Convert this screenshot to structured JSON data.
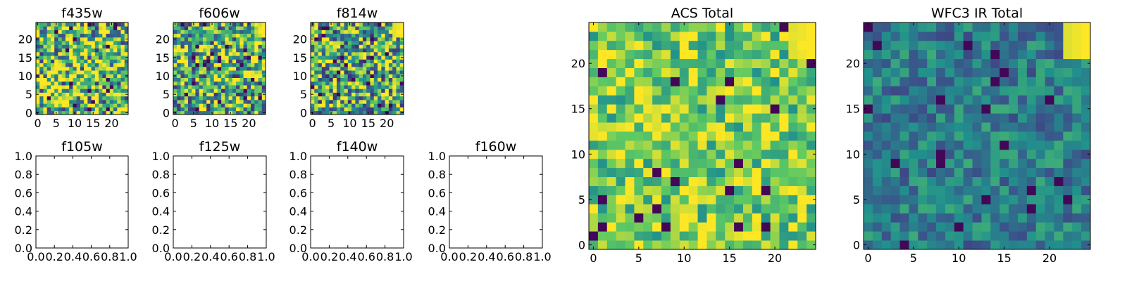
{
  "colormap": [
    "#440154",
    "#3b528b",
    "#21918c",
    "#5ec962",
    "#fde725"
  ],
  "chart_data": [
    {
      "type": "heatmap",
      "title": "f435w",
      "xlim": [
        -0.5,
        24.5
      ],
      "ylim": [
        -0.5,
        24.5
      ],
      "xticks": [
        0,
        5,
        10,
        15,
        20
      ],
      "yticks": [
        0,
        5,
        10,
        15,
        20
      ],
      "xtick_labels": [
        "0",
        "5",
        "10",
        "15",
        "20"
      ],
      "ytick_labels": [
        "0",
        "5",
        "10",
        "15",
        "20"
      ],
      "grid_size": [
        25,
        25
      ],
      "pattern": "noise",
      "mean": 0.72,
      "spread": 0.55,
      "seed": 11,
      "hot_corner": 0
    },
    {
      "type": "heatmap",
      "title": "f606w",
      "xlim": [
        -0.5,
        24.5
      ],
      "ylim": [
        -0.5,
        24.5
      ],
      "xticks": [
        0,
        5,
        10,
        15,
        20
      ],
      "yticks": [
        0,
        5,
        10,
        15,
        20
      ],
      "xtick_labels": [
        "0",
        "5",
        "10",
        "15",
        "20"
      ],
      "ytick_labels": [
        "0",
        "5",
        "10",
        "15",
        "20"
      ],
      "grid_size": [
        25,
        25
      ],
      "pattern": "noise",
      "mean": 0.64,
      "spread": 0.5,
      "seed": 23,
      "hot_corner": 0.6
    },
    {
      "type": "heatmap",
      "title": "f814w",
      "xlim": [
        -0.5,
        24.5
      ],
      "ylim": [
        -0.5,
        24.5
      ],
      "xticks": [
        0,
        5,
        10,
        15,
        20
      ],
      "yticks": [
        0,
        5,
        10,
        15,
        20
      ],
      "xtick_labels": [
        "0",
        "5",
        "10",
        "15",
        "20"
      ],
      "ytick_labels": [
        "0",
        "5",
        "10",
        "15",
        "20"
      ],
      "grid_size": [
        25,
        25
      ],
      "pattern": "noise",
      "mean": 0.62,
      "spread": 0.5,
      "seed": 37,
      "hot_corner": 1
    },
    {
      "type": "empty",
      "title": "f105w",
      "xlim": [
        0,
        1
      ],
      "ylim": [
        0,
        1
      ],
      "xticks": [
        0,
        0.2,
        0.4,
        0.6,
        0.8,
        1.0
      ],
      "yticks": [
        0,
        0.2,
        0.4,
        0.6,
        0.8,
        1.0
      ],
      "xtick_labels": [
        "0.0",
        "0.2",
        "0.4",
        "0.6",
        "0.8",
        "1.0"
      ],
      "ytick_labels": [
        "0.0",
        "0.2",
        "0.4",
        "0.6",
        "0.8",
        "1.0"
      ]
    },
    {
      "type": "empty",
      "title": "f125w",
      "xlim": [
        0,
        1
      ],
      "ylim": [
        0,
        1
      ],
      "xticks": [
        0,
        0.2,
        0.4,
        0.6,
        0.8,
        1.0
      ],
      "yticks": [
        0,
        0.2,
        0.4,
        0.6,
        0.8,
        1.0
      ],
      "xtick_labels": [
        "0.0",
        "0.2",
        "0.4",
        "0.6",
        "0.8",
        "1.0"
      ],
      "ytick_labels": [
        "0.0",
        "0.2",
        "0.4",
        "0.6",
        "0.8",
        "1.0"
      ]
    },
    {
      "type": "empty",
      "title": "f140w",
      "xlim": [
        0,
        1
      ],
      "ylim": [
        0,
        1
      ],
      "xticks": [
        0,
        0.2,
        0.4,
        0.6,
        0.8,
        1.0
      ],
      "yticks": [
        0,
        0.2,
        0.4,
        0.6,
        0.8,
        1.0
      ],
      "xtick_labels": [
        "0.0",
        "0.2",
        "0.4",
        "0.6",
        "0.8",
        "1.0"
      ],
      "ytick_labels": [
        "0.0",
        "0.2",
        "0.4",
        "0.6",
        "0.8",
        "1.0"
      ]
    },
    {
      "type": "empty",
      "title": "f160w",
      "xlim": [
        0,
        1
      ],
      "ylim": [
        0,
        1
      ],
      "xticks": [
        0,
        0.2,
        0.4,
        0.6,
        0.8,
        1.0
      ],
      "yticks": [
        0,
        0.2,
        0.4,
        0.6,
        0.8,
        1.0
      ],
      "xtick_labels": [
        "0.0",
        "0.2",
        "0.4",
        "0.6",
        "0.8",
        "1.0"
      ],
      "ytick_labels": [
        "0.0",
        "0.2",
        "0.4",
        "0.6",
        "0.8",
        "1.0"
      ]
    },
    {
      "type": "heatmap",
      "title": "ACS Total",
      "xlim": [
        -0.5,
        24.5
      ],
      "ylim": [
        -0.5,
        24.5
      ],
      "xticks": [
        0,
        5,
        10,
        15,
        20
      ],
      "yticks": [
        0,
        5,
        10,
        15,
        20
      ],
      "xtick_labels": [
        "0",
        "5",
        "10",
        "15",
        "20"
      ],
      "ytick_labels": [
        "0",
        "5",
        "10",
        "15",
        "20"
      ],
      "grid_size": [
        25,
        25
      ],
      "pattern": "noise",
      "mean": 0.78,
      "spread": 0.28,
      "seed": 51,
      "hot_corner": 1
    },
    {
      "type": "heatmap",
      "title": "WFC3 IR Total",
      "xlim": [
        -0.5,
        24.5
      ],
      "ylim": [
        -0.5,
        24.5
      ],
      "xticks": [
        0,
        5,
        10,
        15,
        20
      ],
      "yticks": [
        0,
        5,
        10,
        15,
        20
      ],
      "xtick_labels": [
        "0",
        "5",
        "10",
        "15",
        "20"
      ],
      "ytick_labels": [
        "0",
        "5",
        "10",
        "15",
        "20"
      ],
      "grid_size": [
        25,
        25
      ],
      "pattern": "noise",
      "mean": 0.42,
      "spread": 0.2,
      "seed": 77,
      "hot_corner": 1
    }
  ]
}
